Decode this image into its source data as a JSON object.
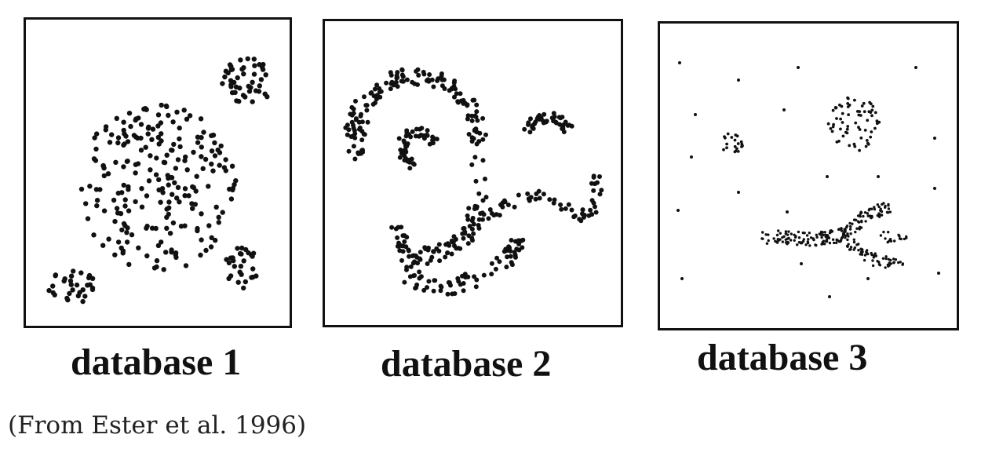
{
  "panels": [
    {
      "label": "database 1"
    },
    {
      "label": "database 2"
    },
    {
      "label": "database 3"
    }
  ],
  "caption": "(From Ester et al. 1996)"
}
